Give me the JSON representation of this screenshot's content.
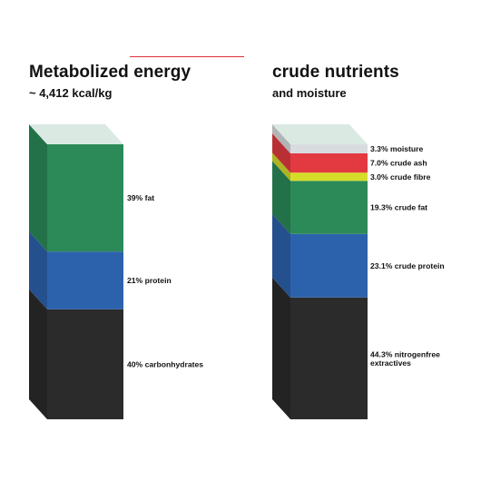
{
  "chart_data": [
    {
      "type": "bar",
      "title": "Metabolized energy",
      "subtitle": "~ 4,412 kcal/kg",
      "segments": [
        {
          "name": "carbonhydrates",
          "value": 40,
          "label": "40% carbonhydrates",
          "color": "#2b2b2b"
        },
        {
          "name": "protein",
          "value": 21,
          "label": "21% protein",
          "color": "#2c62ac"
        },
        {
          "name": "fat",
          "value": 39,
          "label": "39% fat",
          "color": "#2b8a58"
        }
      ]
    },
    {
      "type": "bar",
      "title": "crude nutrients",
      "subtitle": "and moisture",
      "segments": [
        {
          "name": "nitrogenfree extractives",
          "value": 44.3,
          "label": "44.3% nitrogenfree extractives",
          "color": "#2b2b2b"
        },
        {
          "name": "crude protein",
          "value": 23.1,
          "label": "23.1% crude protein",
          "color": "#2c62ac"
        },
        {
          "name": "crude fat",
          "value": 19.3,
          "label": "19.3% crude fat",
          "color": "#2b8a58"
        },
        {
          "name": "crude fibre",
          "value": 3.0,
          "label": "3.0% crude fibre",
          "color": "#d6dc2a"
        },
        {
          "name": "crude ash",
          "value": 7.0,
          "label": "7.0% crude ash",
          "color": "#e23a40"
        },
        {
          "name": "moisture",
          "value": 3.3,
          "label": "3.3% moisture",
          "color": "#d9dcde"
        }
      ]
    }
  ],
  "colors": {
    "accent": "#e0303a",
    "top_face": "#d8e9e1"
  }
}
